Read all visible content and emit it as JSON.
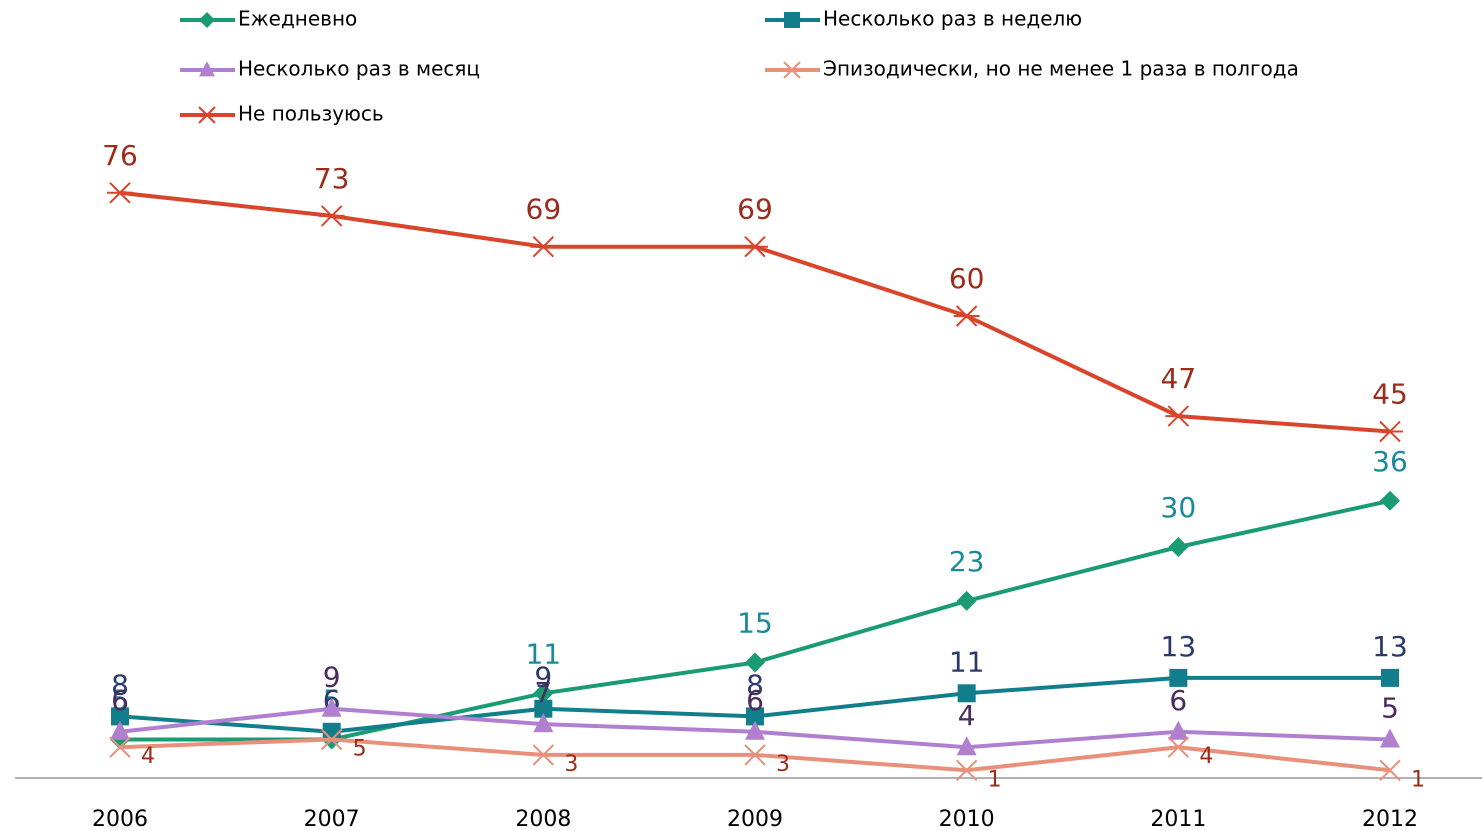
{
  "chart_data": {
    "type": "line",
    "categories": [
      "2006",
      "2007",
      "2008",
      "2009",
      "2010",
      "2011",
      "2012"
    ],
    "series": [
      {
        "name": "Ежедневно",
        "color": "#1a9b73",
        "label_color": "#1a8a9a",
        "marker": "diamond",
        "values": [
          5,
          5,
          11,
          15,
          23,
          30,
          36
        ]
      },
      {
        "name": "Несколько раз в неделю",
        "color": "#127e8c",
        "label_color": "#2b3a6b",
        "marker": "square",
        "values": [
          8,
          6,
          9,
          8,
          11,
          13,
          13
        ]
      },
      {
        "name": "Несколько раз в месяц",
        "color": "#b07fd0",
        "label_color": "#4b2a5e",
        "marker": "triangle",
        "values": [
          6,
          9,
          7,
          6,
          4,
          6,
          5
        ]
      },
      {
        "name": "Эпизодически, но не менее 1 раза в полгода",
        "color": "#e8907a",
        "label_color": "#9b2b1b",
        "marker": "x",
        "values": [
          4,
          5,
          3,
          3,
          1,
          4,
          1
        ]
      },
      {
        "name": "Не пользуюсь",
        "color": "#d9452b",
        "label_color": "#9b2b1b",
        "marker": "star",
        "values": [
          76,
          73,
          69,
          69,
          60,
          47,
          45
        ]
      }
    ],
    "ylim": [
      0,
      80
    ],
    "grid": false
  }
}
